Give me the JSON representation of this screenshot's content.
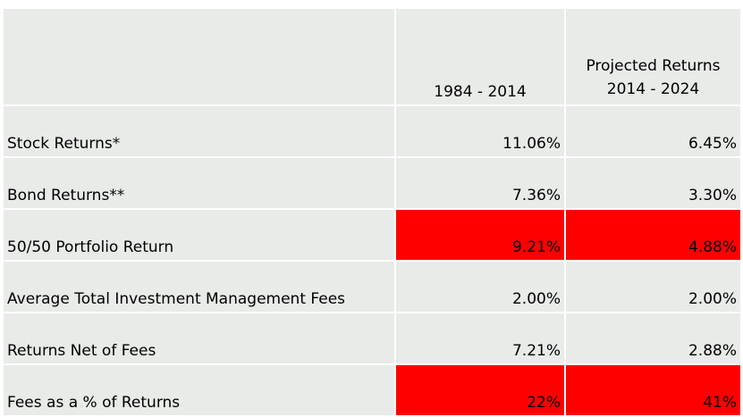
{
  "table": {
    "header": {
      "label_col": "",
      "historical": "1984 - 2014",
      "projected_line1": "Projected Returns",
      "projected_line2": "2014 - 2024"
    },
    "highlight_color": "#ff0000",
    "cell_color": "#e8ebe8",
    "rows": [
      {
        "label": "Stock Returns*",
        "historical": "11.06%",
        "projected": "6.45%",
        "highlight": false
      },
      {
        "label": "Bond Returns**",
        "historical": "7.36%",
        "projected": "3.30%",
        "highlight": false
      },
      {
        "label": "50/50 Portfolio Return",
        "historical": "9.21%",
        "projected": "4.88%",
        "highlight": true
      },
      {
        "label": "Average Total Investment Management Fees",
        "historical": "2.00%",
        "projected": "2.00%",
        "highlight": false
      },
      {
        "label": "Returns Net of Fees",
        "historical": "7.21%",
        "projected": "2.88%",
        "highlight": false
      },
      {
        "label": "Fees as a % of Returns",
        "historical": "22%",
        "projected": "41%",
        "highlight": true
      }
    ]
  }
}
